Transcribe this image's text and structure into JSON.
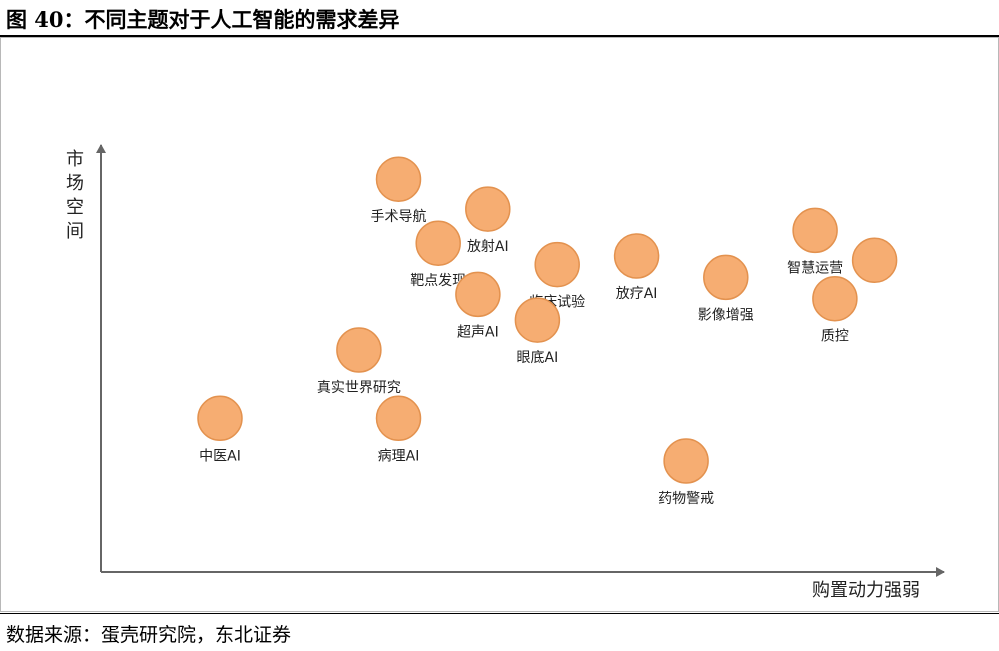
{
  "figure": {
    "title": "图 40：不同主题对于人工智能的需求差异",
    "source": "数据来源：蛋壳研究院，东北证券"
  },
  "chart_data": {
    "type": "scatter",
    "xlabel": "购置动力强弱",
    "ylabel": "市场空间",
    "x_ticks": "none",
    "y_ticks": "none",
    "grid": false,
    "legend": "none",
    "marker_color": "#F6AD72",
    "marker_edge_color": "#E3924F",
    "points": [
      {
        "label": "手术导航",
        "x": 3.0,
        "y": 9.2
      },
      {
        "label": "放射AI",
        "x": 3.9,
        "y": 8.5
      },
      {
        "label": "靶点发现",
        "x": 3.4,
        "y": 7.7
      },
      {
        "label": "临床试验",
        "x": 4.6,
        "y": 7.2
      },
      {
        "label": "放疗AI",
        "x": 5.4,
        "y": 7.4
      },
      {
        "label": "影像增强",
        "x": 6.3,
        "y": 6.9
      },
      {
        "label": "智慧运营",
        "x": 7.2,
        "y": 8.0
      },
      {
        "label": "",
        "x": 7.8,
        "y": 7.3
      },
      {
        "label": "质控",
        "x": 7.4,
        "y": 6.4
      },
      {
        "label": "超声AI",
        "x": 3.8,
        "y": 6.5
      },
      {
        "label": "眼底AI",
        "x": 4.4,
        "y": 5.9
      },
      {
        "label": "真实世界研究",
        "x": 2.6,
        "y": 5.2
      },
      {
        "label": "中医AI",
        "x": 1.2,
        "y": 3.6
      },
      {
        "label": "病理AI",
        "x": 3.0,
        "y": 3.6
      },
      {
        "label": "药物警戒",
        "x": 5.9,
        "y": 2.6
      }
    ],
    "xlim": [
      0,
      8.5
    ],
    "ylim": [
      0,
      10
    ]
  }
}
